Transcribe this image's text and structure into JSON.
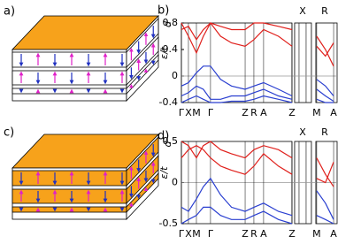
{
  "labels": {
    "a": "a)",
    "c": "c)"
  },
  "chart_data": [
    {
      "type": "line",
      "label": "b)",
      "ylabel": "ε/t",
      "ylabel_sub": "d",
      "annotations": [
        "X",
        "R"
      ],
      "xlim": [
        0,
        10
      ],
      "ylim": [
        -0.4,
        0.8
      ],
      "yticks": [
        -0.4,
        0,
        0.4,
        0.8
      ],
      "grid": true,
      "zero_line": true,
      "xticks": [
        {
          "value": 0,
          "label": "Γ"
        },
        {
          "value": 0.45,
          "label": "X"
        },
        {
          "value": 0.96,
          "label": "M"
        },
        {
          "value": 1.86,
          "label": "Γ"
        },
        {
          "value": 4.07,
          "label": "Z"
        },
        {
          "value": 4.63,
          "label": "R"
        },
        {
          "value": 5.25,
          "label": "A"
        },
        {
          "value": 7.06,
          "label": "Z"
        },
        {
          "value": 8.64,
          "label": "M"
        },
        {
          "value": 9.72,
          "label": "A"
        }
      ],
      "x": [
        0,
        0.45,
        0.96,
        1.4,
        1.86,
        2.5,
        3.2,
        4.07,
        4.63,
        5.25,
        6.2,
        7.06,
        8.0,
        8.64,
        9.2,
        9.72
      ],
      "series": [
        {
          "color": "#e0201c",
          "values": [
            0.7,
            0.75,
            0.55,
            0.7,
            0.8,
            0.6,
            0.5,
            0.45,
            0.55,
            0.7,
            0.6,
            0.45,
            null,
            0.45,
            0.3,
            0.5
          ]
        },
        {
          "color": "#e0201c",
          "values": [
            0.8,
            0.6,
            0.35,
            0.6,
            0.8,
            0.75,
            0.7,
            0.7,
            0.8,
            0.8,
            0.75,
            0.7,
            null,
            0.6,
            0.4,
            0.15
          ]
        },
        {
          "color": "#2a3fd0",
          "values": [
            -0.15,
            -0.1,
            0.05,
            0.15,
            0.15,
            -0.05,
            -0.15,
            -0.2,
            -0.15,
            -0.1,
            -0.2,
            -0.3,
            null,
            -0.05,
            -0.15,
            -0.3
          ]
        },
        {
          "color": "#2a3fd0",
          "values": [
            -0.3,
            -0.25,
            -0.15,
            -0.2,
            -0.35,
            -0.35,
            -0.3,
            -0.3,
            -0.25,
            -0.2,
            -0.3,
            -0.35,
            null,
            -0.2,
            -0.3,
            -0.38
          ]
        },
        {
          "color": "#2a3fd0",
          "values": [
            -0.4,
            -0.35,
            -0.3,
            -0.35,
            -0.4,
            -0.4,
            -0.38,
            -0.38,
            -0.35,
            -0.3,
            -0.35,
            -0.4,
            null,
            -0.35,
            -0.4,
            -0.4
          ]
        }
      ]
    },
    {
      "type": "line",
      "label": "d)",
      "ylabel": "ε/t",
      "ylabel_sub": "d",
      "annotations": [
        "X",
        "R"
      ],
      "xlim": [
        0,
        10
      ],
      "ylim": [
        -0.5,
        0.5
      ],
      "yticks": [
        -0.5,
        0,
        0.5
      ],
      "grid": true,
      "zero_line": true,
      "xticks": [
        {
          "value": 0,
          "label": "Γ"
        },
        {
          "value": 0.45,
          "label": "X"
        },
        {
          "value": 0.96,
          "label": "M"
        },
        {
          "value": 1.86,
          "label": "Γ"
        },
        {
          "value": 4.07,
          "label": "Z"
        },
        {
          "value": 4.63,
          "label": "R"
        },
        {
          "value": 5.25,
          "label": "A"
        },
        {
          "value": 7.06,
          "label": "Z"
        },
        {
          "value": 8.64,
          "label": "M"
        },
        {
          "value": 9.72,
          "label": "A"
        }
      ],
      "x": [
        0,
        0.45,
        0.96,
        1.4,
        1.86,
        2.5,
        3.2,
        4.07,
        4.63,
        5.25,
        6.2,
        7.06,
        8.0,
        8.64,
        9.2,
        9.72
      ],
      "series": [
        {
          "color": "#e0201c",
          "values": [
            0.3,
            0.4,
            0.45,
            0.4,
            0.3,
            0.2,
            0.15,
            0.1,
            0.2,
            0.35,
            0.2,
            0.1,
            null,
            0.05,
            0,
            0.25
          ]
        },
        {
          "color": "#e0201c",
          "values": [
            0.5,
            0.45,
            0.3,
            0.45,
            0.5,
            0.4,
            0.35,
            0.3,
            0.4,
            0.45,
            0.4,
            0.3,
            null,
            0.3,
            0.1,
            -0.05
          ]
        },
        {
          "color": "#2a3fd0",
          "values": [
            -0.3,
            -0.35,
            -0.2,
            -0.05,
            0.05,
            -0.15,
            -0.3,
            -0.35,
            -0.3,
            -0.25,
            -0.35,
            -0.4,
            null,
            -0.1,
            -0.25,
            -0.45
          ]
        },
        {
          "color": "#2a3fd0",
          "values": [
            -0.5,
            -0.45,
            -0.4,
            -0.3,
            -0.3,
            -0.4,
            -0.45,
            -0.45,
            -0.4,
            -0.35,
            -0.45,
            -0.5,
            null,
            -0.4,
            -0.45,
            -0.5
          ]
        }
      ]
    }
  ]
}
